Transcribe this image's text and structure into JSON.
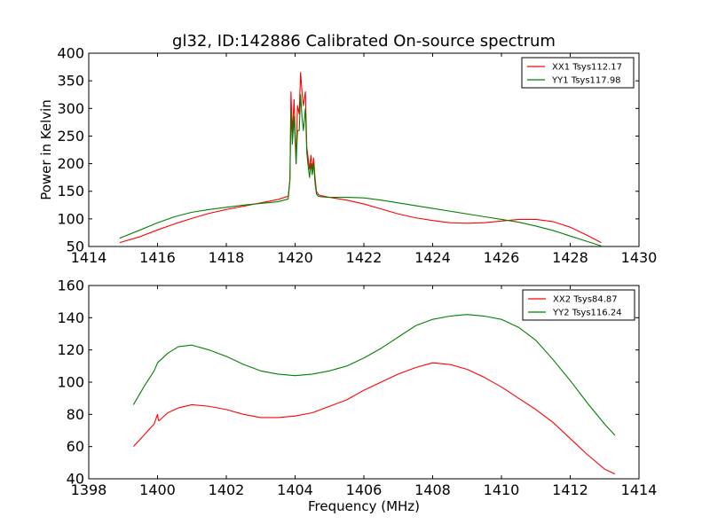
{
  "chart_data": [
    {
      "type": "line",
      "title": "gl32, ID:142886 Calibrated On-source spectrum",
      "xlabel": "",
      "ylabel": "Power in Kelvin",
      "xlim": [
        1414,
        1430
      ],
      "ylim": [
        50,
        400
      ],
      "xticks": [
        1414,
        1416,
        1418,
        1420,
        1422,
        1424,
        1426,
        1428,
        1430
      ],
      "yticks": [
        50,
        100,
        150,
        200,
        250,
        300,
        350,
        400
      ],
      "legend_position": "top-right",
      "series": [
        {
          "name": "XX1 Tsys112.17",
          "color": "#ff0000",
          "x": [
            1414.9,
            1415.5,
            1416.0,
            1416.5,
            1417.0,
            1417.5,
            1418.0,
            1418.5,
            1419.0,
            1419.5,
            1419.8,
            1419.85,
            1419.88,
            1419.92,
            1419.97,
            1420.03,
            1420.07,
            1420.12,
            1420.16,
            1420.2,
            1420.24,
            1420.3,
            1420.34,
            1420.38,
            1420.42,
            1420.46,
            1420.5,
            1420.54,
            1420.58,
            1420.62,
            1420.68,
            1420.76,
            1421.0,
            1421.5,
            1422.0,
            1422.5,
            1423.0,
            1423.5,
            1424.0,
            1424.5,
            1425.0,
            1425.5,
            1426.0,
            1426.5,
            1427.0,
            1427.5,
            1428.0,
            1428.5,
            1428.9
          ],
          "values": [
            57,
            68,
            80,
            91,
            101,
            110,
            117,
            123,
            129,
            135,
            141,
            172,
            330,
            255,
            316,
            200,
            305,
            290,
            365,
            330,
            305,
            330,
            230,
            210,
            190,
            215,
            190,
            210,
            175,
            150,
            144,
            142,
            139,
            134,
            127,
            118,
            109,
            102,
            97,
            93,
            92,
            93,
            96,
            99,
            99,
            95,
            85,
            70,
            57
          ]
        },
        {
          "name": "YY1 Tsys117.98",
          "color": "#008000",
          "x": [
            1414.9,
            1415.5,
            1416.0,
            1416.5,
            1417.0,
            1417.5,
            1418.0,
            1418.5,
            1419.0,
            1419.5,
            1419.8,
            1419.85,
            1419.88,
            1419.92,
            1419.97,
            1420.03,
            1420.07,
            1420.12,
            1420.16,
            1420.2,
            1420.24,
            1420.3,
            1420.34,
            1420.38,
            1420.42,
            1420.46,
            1420.5,
            1420.54,
            1420.58,
            1420.62,
            1420.68,
            1420.76,
            1421.0,
            1421.5,
            1422.0,
            1422.5,
            1423.0,
            1423.5,
            1424.0,
            1424.5,
            1425.0,
            1425.5,
            1426.0,
            1426.5,
            1427.0,
            1427.5,
            1428.0,
            1428.5,
            1428.9
          ],
          "values": [
            65,
            80,
            93,
            104,
            112,
            117,
            121,
            125,
            128,
            131,
            136,
            170,
            295,
            235,
            285,
            200,
            260,
            260,
            325,
            285,
            260,
            300,
            220,
            195,
            175,
            200,
            180,
            200,
            165,
            145,
            141,
            140,
            139,
            139,
            138,
            134,
            129,
            124,
            119,
            114,
            109,
            104,
            99,
            94,
            87,
            79,
            69,
            59,
            51
          ]
        }
      ]
    },
    {
      "type": "line",
      "title": "",
      "xlabel": "Frequency (MHz)",
      "ylabel": "",
      "xlim": [
        1398,
        1414
      ],
      "ylim": [
        40,
        160
      ],
      "xticks": [
        1398,
        1400,
        1402,
        1404,
        1406,
        1408,
        1410,
        1412,
        1414
      ],
      "yticks": [
        40,
        60,
        80,
        100,
        120,
        140,
        160
      ],
      "legend_position": "top-right",
      "series": [
        {
          "name": "XX2 Tsys84.87",
          "color": "#ff0000",
          "x": [
            1399.3,
            1399.6,
            1399.9,
            1400.0,
            1400.02,
            1400.04,
            1400.3,
            1400.6,
            1401.0,
            1401.5,
            1402.0,
            1402.5,
            1403.0,
            1403.5,
            1404.0,
            1404.5,
            1405.0,
            1405.5,
            1406.0,
            1406.5,
            1407.0,
            1407.5,
            1408.0,
            1408.5,
            1409.0,
            1409.5,
            1410.0,
            1410.5,
            1411.0,
            1411.5,
            1412.0,
            1412.5,
            1413.0,
            1413.3
          ],
          "values": [
            60,
            67,
            74,
            80,
            77,
            76,
            81,
            84,
            86,
            85,
            83,
            80,
            78,
            78,
            79,
            81,
            85,
            89,
            95,
            100,
            105,
            109,
            112,
            111,
            108,
            103,
            97,
            90,
            83,
            75,
            65,
            55,
            46,
            43
          ]
        },
        {
          "name": "YY2 Tsys116.24",
          "color": "#008000",
          "x": [
            1399.3,
            1399.6,
            1399.9,
            1400.0,
            1400.3,
            1400.6,
            1401.0,
            1401.5,
            1402.0,
            1402.5,
            1403.0,
            1403.5,
            1404.0,
            1404.5,
            1405.0,
            1405.5,
            1406.0,
            1406.5,
            1407.0,
            1407.5,
            1408.0,
            1408.5,
            1409.0,
            1409.5,
            1410.0,
            1410.5,
            1411.0,
            1411.5,
            1412.0,
            1412.5,
            1413.0,
            1413.3
          ],
          "values": [
            86,
            97,
            107,
            112,
            118,
            122,
            123,
            120,
            116,
            111,
            107,
            105,
            104,
            105,
            107,
            110,
            115,
            121,
            128,
            135,
            139,
            141,
            142,
            141,
            139,
            134,
            126,
            114,
            101,
            87,
            74,
            67
          ]
        }
      ]
    }
  ]
}
